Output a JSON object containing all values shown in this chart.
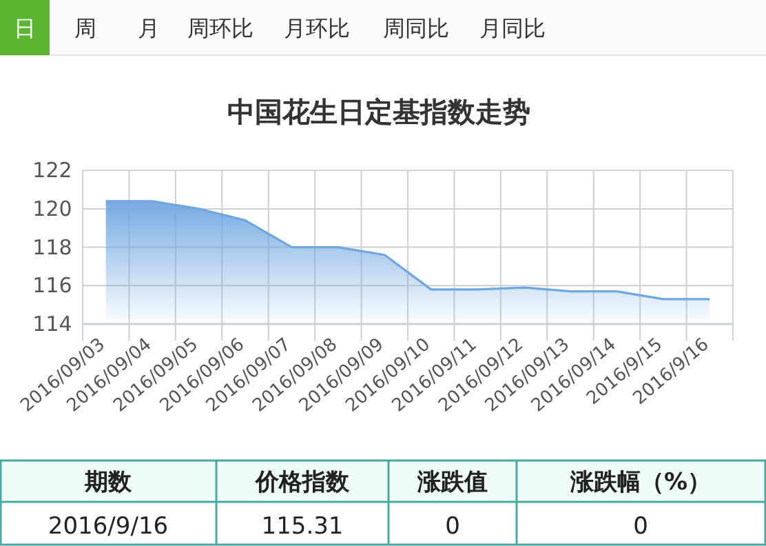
{
  "chart_data": [
    {
      "type": "other",
      "annotations": [
        "日",
        "周",
        "月",
        "周环比",
        "月环比",
        "周同比",
        "月同比"
      ]
    },
    {
      "type": "area",
      "title": "中国花生日定基指数走势",
      "color": "#6ea6e0",
      "grid": true,
      "marker": "none",
      "ylim": [
        114,
        122
      ],
      "yticks": [
        114,
        116,
        118,
        120,
        122
      ],
      "categories": [
        "2016/09/03",
        "2016/09/04",
        "2016/09/05",
        "2016/09/06",
        "2016/09/07",
        "2016/09/08",
        "2016/09/09",
        "2016/09/10",
        "2016/09/11",
        "2016/09/12",
        "2016/09/13",
        "2016/09/14",
        "2016/9/15",
        "2016/9/16"
      ],
      "values": [
        120.4,
        120.4,
        120.0,
        119.4,
        118.0,
        118.0,
        117.6,
        115.8,
        115.8,
        115.9,
        115.7,
        115.7,
        115.3,
        115.3
      ]
    },
    {
      "type": "other",
      "annotations": [
        "期数",
        "价格指数",
        "涨跌值",
        "涨跌幅（%）",
        "2016/9/16",
        "115.31",
        "0",
        "0"
      ]
    }
  ]
}
